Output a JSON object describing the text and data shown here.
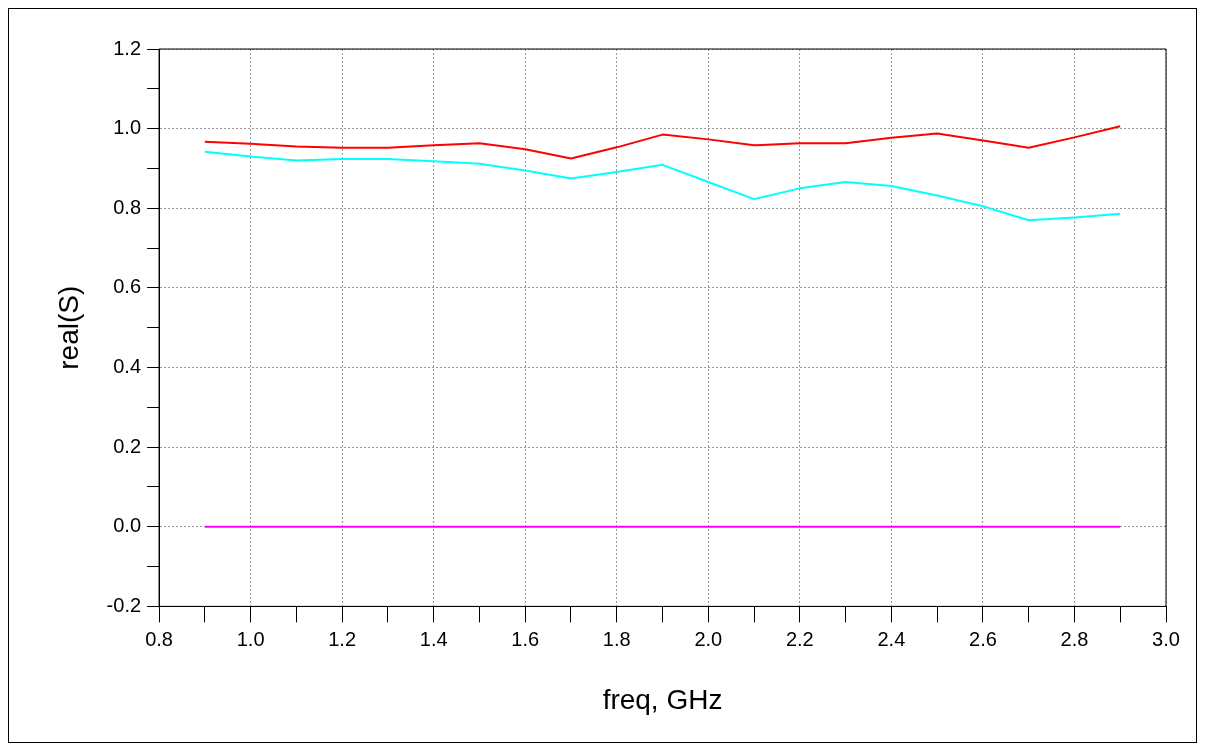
{
  "chart_data": {
    "type": "line",
    "xlabel": "freq, GHz",
    "ylabel": "real(S)",
    "x": [
      0.9,
      1.0,
      1.1,
      1.2,
      1.3,
      1.4,
      1.5,
      1.6,
      1.7,
      1.8,
      1.9,
      2.0,
      2.1,
      2.2,
      2.3,
      2.4,
      2.5,
      2.6,
      2.7,
      2.8,
      2.9
    ],
    "series": [
      {
        "color": "#ff0000",
        "values": [
          0.967,
          0.962,
          0.955,
          0.952,
          0.952,
          0.958,
          0.963,
          0.948,
          0.925,
          0.953,
          0.985,
          0.973,
          0.958,
          0.963,
          0.963,
          0.977,
          0.988,
          0.97,
          0.952,
          0.978,
          1.006
        ]
      },
      {
        "color": "#00ffff",
        "values": [
          0.942,
          0.93,
          0.92,
          0.924,
          0.924,
          0.918,
          0.912,
          0.895,
          0.875,
          0.891,
          0.909,
          0.866,
          0.823,
          0.85,
          0.866,
          0.856,
          0.832,
          0.805,
          0.77,
          0.777,
          0.786
        ]
      },
      {
        "color": "#ff00ff",
        "values": [
          0,
          0,
          0,
          0,
          0,
          0,
          0,
          0,
          0,
          0,
          0,
          0,
          0,
          0,
          0,
          0,
          0,
          0,
          0,
          0,
          0
        ]
      }
    ],
    "xlim": [
      0.8,
      3.0
    ],
    "xticks": [
      0.8,
      {
        "value": 0.9,
        "label": null
      },
      {
        "value": 1.0,
        "label": "1.0"
      },
      {
        "value": 1.1,
        "label": null
      },
      1.2,
      {
        "value": 1.3,
        "label": null
      },
      1.4,
      {
        "value": 1.5,
        "label": null
      },
      1.6,
      {
        "value": 1.7,
        "label": null
      },
      1.8,
      {
        "value": 1.9,
        "label": null
      },
      {
        "value": 2.0,
        "label": "2.0"
      },
      {
        "value": 2.1,
        "label": null
      },
      2.2,
      {
        "value": 2.3,
        "label": null
      },
      2.4,
      {
        "value": 2.5,
        "label": null
      },
      2.6,
      {
        "value": 2.7,
        "label": null
      },
      2.8,
      {
        "value": 2.9,
        "label": null
      },
      {
        "value": 3.0,
        "label": "3.0"
      }
    ],
    "ylim": [
      -0.2,
      1.2
    ],
    "yticks": [
      -0.2,
      {
        "value": -0.1,
        "label": null
      },
      {
        "value": 0,
        "label": "0.0"
      },
      {
        "value": 0.1,
        "label": null
      },
      0.2,
      {
        "value": 0.3,
        "label": null
      },
      0.4,
      {
        "value": 0.5,
        "label": null
      },
      0.6,
      {
        "value": 0.7,
        "label": null
      },
      0.8,
      {
        "value": 0.9,
        "label": null
      },
      {
        "value": 1.0,
        "label": "1.0"
      },
      {
        "value": 1.1,
        "label": null
      },
      1.2
    ],
    "grid": true,
    "legend": false,
    "marker": "none",
    "line_style": "solid"
  }
}
